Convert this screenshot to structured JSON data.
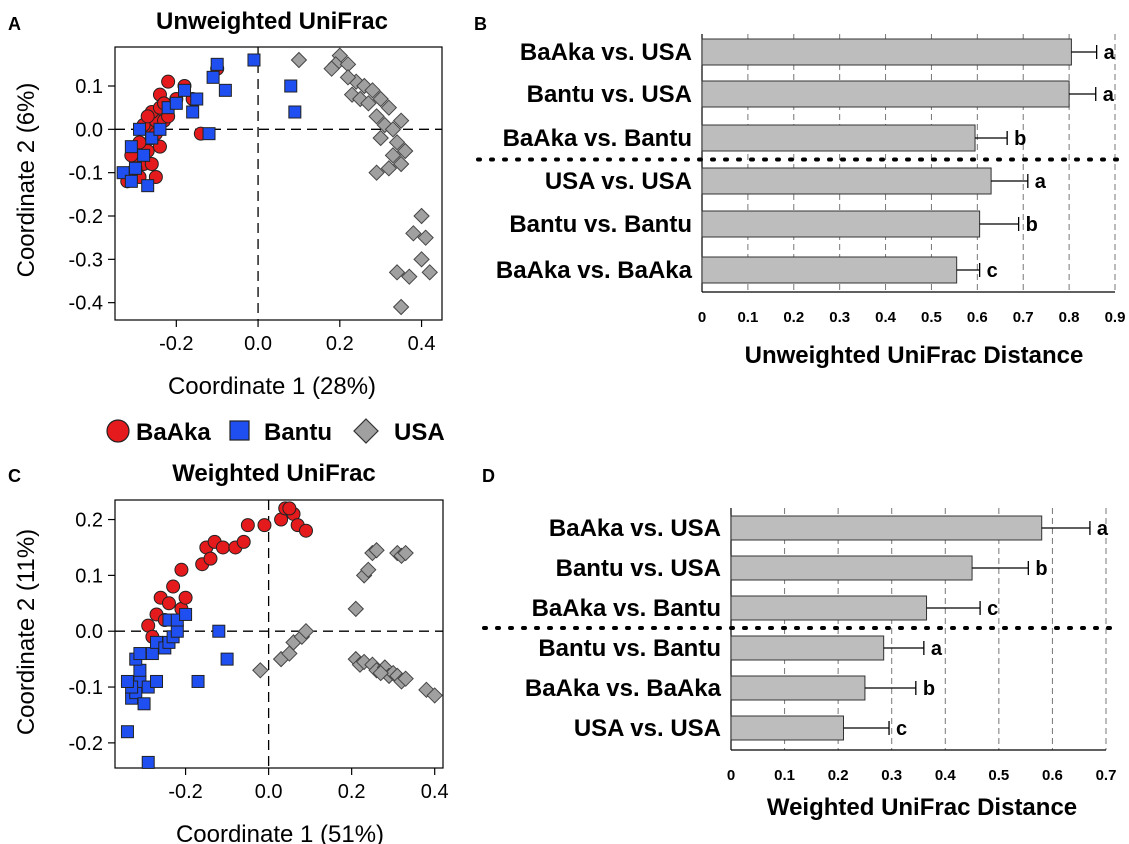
{
  "legend": {
    "entries": [
      {
        "label": "BaAka",
        "color": "#e41a1c",
        "shape": "circle"
      },
      {
        "label": "Bantu",
        "color": "#1f4ff0",
        "shape": "square"
      },
      {
        "label": "USA",
        "color": "#a0a0a0",
        "shape": "diamond"
      }
    ]
  },
  "chart_data": [
    {
      "panel": "A",
      "type": "scatter",
      "title": "Unweighted UniFrac",
      "xlabel": "Coordinate 1 (28%)",
      "ylabel": "Coordinate 2 (6%)",
      "xlim": [
        -0.35,
        0.45
      ],
      "ylim": [
        -0.44,
        0.19
      ],
      "xticks": [
        -0.2,
        0.0,
        0.2,
        0.4
      ],
      "xtick_labels": [
        "-0.2",
        "0.0",
        "0.2",
        "0.4"
      ],
      "yticks": [
        0.1,
        0.0,
        -0.1,
        -0.2,
        -0.3,
        -0.4
      ],
      "ytick_labels": [
        "0.1",
        "0.0",
        "-0.1",
        "-0.2",
        "-0.3",
        "-0.4"
      ],
      "reference_lines": {
        "x": 0,
        "y": 0
      },
      "series": [
        {
          "name": "BaAka",
          "points": [
            [
              -0.32,
              -0.12
            ],
            [
              -0.31,
              -0.1
            ],
            [
              -0.3,
              -0.07
            ],
            [
              -0.31,
              -0.06
            ],
            [
              -0.29,
              -0.11
            ],
            [
              -0.28,
              -0.08
            ],
            [
              -0.27,
              -0.05
            ],
            [
              -0.29,
              -0.03
            ],
            [
              -0.26,
              -0.02
            ],
            [
              -0.27,
              0.0
            ],
            [
              -0.25,
              0.02
            ],
            [
              -0.26,
              0.04
            ],
            [
              -0.24,
              0.05
            ],
            [
              -0.23,
              0.02
            ],
            [
              -0.22,
              0.03
            ],
            [
              -0.25,
              -0.01
            ],
            [
              -0.24,
              -0.04
            ],
            [
              -0.26,
              -0.08
            ],
            [
              -0.25,
              -0.11
            ],
            [
              -0.28,
              0.01
            ],
            [
              -0.27,
              0.03
            ],
            [
              -0.24,
              0.08
            ],
            [
              -0.22,
              0.11
            ],
            [
              -0.2,
              0.07
            ],
            [
              -0.18,
              0.1
            ],
            [
              -0.16,
              0.07
            ],
            [
              -0.14,
              -0.01
            ],
            [
              -0.1,
              0.14
            ],
            [
              -0.23,
              0.06
            ],
            [
              -0.3,
              -0.09
            ]
          ]
        },
        {
          "name": "Bantu",
          "points": [
            [
              -0.33,
              -0.1
            ],
            [
              -0.31,
              -0.12
            ],
            [
              -0.3,
              -0.09
            ],
            [
              -0.28,
              -0.06
            ],
            [
              -0.27,
              -0.13
            ],
            [
              -0.31,
              -0.04
            ],
            [
              -0.29,
              0.0
            ],
            [
              -0.26,
              -0.02
            ],
            [
              -0.24,
              0.0
            ],
            [
              -0.22,
              0.05
            ],
            [
              -0.2,
              0.06
            ],
            [
              -0.18,
              0.09
            ],
            [
              -0.16,
              0.04
            ],
            [
              -0.15,
              0.07
            ],
            [
              -0.11,
              0.12
            ],
            [
              -0.12,
              -0.01
            ],
            [
              -0.1,
              0.15
            ],
            [
              -0.08,
              0.09
            ],
            [
              -0.01,
              0.16
            ],
            [
              0.08,
              0.1
            ],
            [
              0.09,
              0.04
            ]
          ]
        },
        {
          "name": "USA",
          "points": [
            [
              0.1,
              0.16
            ],
            [
              0.2,
              0.17
            ],
            [
              0.19,
              0.15
            ],
            [
              0.18,
              0.14
            ],
            [
              0.22,
              0.15
            ],
            [
              0.24,
              0.11
            ],
            [
              0.22,
              0.12
            ],
            [
              0.26,
              0.1
            ],
            [
              0.28,
              0.09
            ],
            [
              0.23,
              0.08
            ],
            [
              0.25,
              0.07
            ],
            [
              0.27,
              0.06
            ],
            [
              0.3,
              0.07
            ],
            [
              0.32,
              0.05
            ],
            [
              0.29,
              0.03
            ],
            [
              0.31,
              0.01
            ],
            [
              0.33,
              0.0
            ],
            [
              0.35,
              0.02
            ],
            [
              0.3,
              -0.02
            ],
            [
              0.34,
              -0.03
            ],
            [
              0.33,
              -0.06
            ],
            [
              0.36,
              -0.05
            ],
            [
              0.32,
              -0.09
            ],
            [
              0.35,
              -0.08
            ],
            [
              0.29,
              -0.1
            ],
            [
              0.4,
              -0.2
            ],
            [
              0.38,
              -0.24
            ],
            [
              0.41,
              -0.25
            ],
            [
              0.4,
              -0.3
            ],
            [
              0.34,
              -0.33
            ],
            [
              0.37,
              -0.34
            ],
            [
              0.42,
              -0.33
            ],
            [
              0.35,
              -0.41
            ]
          ]
        }
      ]
    },
    {
      "panel": "B",
      "type": "bar",
      "orientation": "horizontal",
      "xlabel": "Unweighted UniFrac Distance",
      "xlim": [
        0,
        0.9
      ],
      "xticks": [
        0,
        0.1,
        0.2,
        0.3,
        0.4,
        0.5,
        0.6,
        0.7,
        0.8,
        0.9
      ],
      "xtick_labels": [
        "0",
        "0.1",
        "0.2",
        "0.3",
        "0.4",
        "0.5",
        "0.6",
        "0.7",
        "0.8",
        "0.9"
      ],
      "separator_after": 3,
      "bars": [
        {
          "label": "BaAka vs. USA",
          "value": 0.805,
          "error": 0.055,
          "letter": "a"
        },
        {
          "label": "Bantu vs. USA",
          "value": 0.8,
          "error": 0.058,
          "letter": "a"
        },
        {
          "label": "BaAka vs. Bantu",
          "value": 0.595,
          "error": 0.07,
          "letter": "b"
        },
        {
          "label": "USA vs. USA",
          "value": 0.63,
          "error": 0.08,
          "letter": "a"
        },
        {
          "label": "Bantu vs. Bantu",
          "value": 0.605,
          "error": 0.085,
          "letter": "b"
        },
        {
          "label": "BaAka vs. BaAka",
          "value": 0.555,
          "error": 0.05,
          "letter": "c"
        }
      ]
    },
    {
      "panel": "C",
      "type": "scatter",
      "title": "Weighted UniFrac",
      "xlabel": "Coordinate 1 (51%)",
      "ylabel": "Coordinate 2 (11%)",
      "xlim": [
        -0.37,
        0.42
      ],
      "ylim": [
        -0.245,
        0.235
      ],
      "xticks": [
        -0.2,
        0.0,
        0.2,
        0.4
      ],
      "xtick_labels": [
        "-0.2",
        "0.0",
        "0.2",
        "0.4"
      ],
      "yticks": [
        0.2,
        0.1,
        0.0,
        -0.1,
        -0.2
      ],
      "ytick_labels": [
        "0.2",
        "0.1",
        "0.0",
        "-0.1",
        "-0.2"
      ],
      "reference_lines": {
        "x": 0,
        "y": 0
      },
      "series": [
        {
          "name": "BaAka",
          "points": [
            [
              -0.29,
              0.01
            ],
            [
              -0.28,
              -0.01
            ],
            [
              -0.27,
              0.03
            ],
            [
              -0.26,
              0.06
            ],
            [
              -0.24,
              0.05
            ],
            [
              -0.23,
              0.08
            ],
            [
              -0.21,
              0.04
            ],
            [
              -0.2,
              0.06
            ],
            [
              -0.21,
              0.11
            ],
            [
              -0.16,
              0.12
            ],
            [
              -0.15,
              0.15
            ],
            [
              -0.13,
              0.16
            ],
            [
              -0.11,
              0.15
            ],
            [
              -0.08,
              0.15
            ],
            [
              -0.06,
              0.16
            ],
            [
              -0.05,
              0.19
            ],
            [
              -0.01,
              0.19
            ],
            [
              0.03,
              0.2
            ],
            [
              0.04,
              0.22
            ],
            [
              0.06,
              0.21
            ],
            [
              0.07,
              0.19
            ],
            [
              0.09,
              0.18
            ],
            [
              0.05,
              0.22
            ],
            [
              -0.14,
              0.13
            ],
            [
              -0.25,
              0.02
            ]
          ]
        },
        {
          "name": "Bantu",
          "points": [
            [
              -0.34,
              -0.18
            ],
            [
              -0.29,
              -0.235
            ],
            [
              -0.33,
              -0.12
            ],
            [
              -0.32,
              -0.11
            ],
            [
              -0.31,
              -0.09
            ],
            [
              -0.33,
              -0.1
            ],
            [
              -0.34,
              -0.09
            ],
            [
              -0.31,
              -0.07
            ],
            [
              -0.3,
              -0.13
            ],
            [
              -0.29,
              -0.1
            ],
            [
              -0.27,
              -0.09
            ],
            [
              -0.32,
              -0.05
            ],
            [
              -0.31,
              -0.04
            ],
            [
              -0.28,
              -0.04
            ],
            [
              -0.27,
              -0.02
            ],
            [
              -0.25,
              -0.03
            ],
            [
              -0.24,
              -0.02
            ],
            [
              -0.23,
              -0.01
            ],
            [
              -0.22,
              0.0
            ],
            [
              -0.24,
              0.02
            ],
            [
              -0.22,
              0.02
            ],
            [
              -0.2,
              0.03
            ],
            [
              -0.17,
              -0.09
            ],
            [
              -0.12,
              0.0
            ],
            [
              -0.1,
              -0.05
            ]
          ]
        },
        {
          "name": "USA",
          "points": [
            [
              -0.02,
              -0.07
            ],
            [
              0.03,
              -0.05
            ],
            [
              0.05,
              -0.04
            ],
            [
              0.06,
              -0.02
            ],
            [
              0.08,
              -0.01
            ],
            [
              0.09,
              0.0
            ],
            [
              0.21,
              0.04
            ],
            [
              0.23,
              0.1
            ],
            [
              0.24,
              0.11
            ],
            [
              0.25,
              0.14
            ],
            [
              0.26,
              0.145
            ],
            [
              0.31,
              0.14
            ],
            [
              0.32,
              0.135
            ],
            [
              0.33,
              0.14
            ],
            [
              0.21,
              -0.05
            ],
            [
              0.22,
              -0.06
            ],
            [
              0.23,
              -0.055
            ],
            [
              0.25,
              -0.06
            ],
            [
              0.26,
              -0.07
            ],
            [
              0.28,
              -0.065
            ],
            [
              0.29,
              -0.08
            ],
            [
              0.3,
              -0.075
            ],
            [
              0.31,
              -0.08
            ],
            [
              0.32,
              -0.09
            ],
            [
              0.33,
              -0.085
            ],
            [
              0.27,
              -0.075
            ],
            [
              0.38,
              -0.105
            ],
            [
              0.4,
              -0.115
            ]
          ]
        }
      ]
    },
    {
      "panel": "D",
      "type": "bar",
      "orientation": "horizontal",
      "xlabel": "Weighted UniFrac Distance",
      "xlim": [
        0,
        0.7
      ],
      "xticks": [
        0,
        0.1,
        0.2,
        0.3,
        0.4,
        0.5,
        0.6,
        0.7
      ],
      "xtick_labels": [
        "0",
        "0.1",
        "0.2",
        "0.3",
        "0.4",
        "0.5",
        "0.6",
        "0.7"
      ],
      "separator_after": 3,
      "bars": [
        {
          "label": "BaAka vs. USA",
          "value": 0.58,
          "error": 0.09,
          "letter": "a"
        },
        {
          "label": "Bantu vs. USA",
          "value": 0.45,
          "error": 0.105,
          "letter": "b"
        },
        {
          "label": "BaAka vs. Bantu",
          "value": 0.365,
          "error": 0.1,
          "letter": "c"
        },
        {
          "label": "Bantu vs. Bantu",
          "value": 0.285,
          "error": 0.075,
          "letter": "a"
        },
        {
          "label": "BaAka vs. BaAka",
          "value": 0.25,
          "error": 0.095,
          "letter": "b"
        },
        {
          "label": "USA vs. USA",
          "value": 0.21,
          "error": 0.085,
          "letter": "c"
        }
      ]
    }
  ],
  "panel_letters": [
    "A",
    "B",
    "C",
    "D"
  ]
}
